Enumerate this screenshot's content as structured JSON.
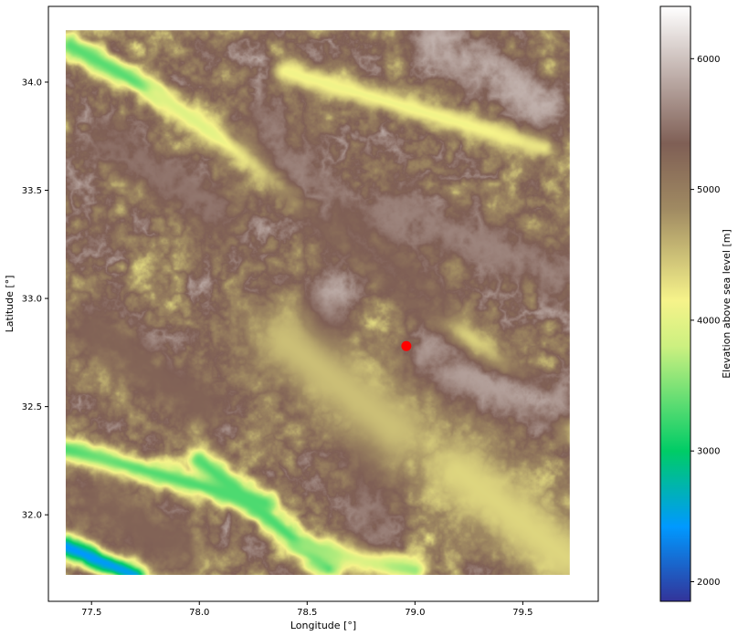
{
  "chart_data": {
    "type": "heatmap",
    "x_axis": {
      "label": "Longitude [°]",
      "range": [
        77.3,
        79.85
      ],
      "ticks": [
        77.5,
        78.0,
        78.5,
        79.0,
        79.5
      ],
      "tick_labels": [
        "77.5",
        "78.0",
        "78.5",
        "79.0",
        "79.5"
      ]
    },
    "y_axis": {
      "label": "Latitude [°]",
      "range": [
        31.6,
        34.35
      ],
      "ticks": [
        32.0,
        32.5,
        33.0,
        33.5,
        34.0
      ],
      "tick_labels": [
        "32.0",
        "32.5",
        "33.0",
        "33.5",
        "34.0"
      ]
    },
    "data_extent": {
      "lon": [
        77.38,
        79.72
      ],
      "lat": [
        31.72,
        34.24
      ]
    },
    "grid": false,
    "colormap": "terrain",
    "colorbar": {
      "label": "Elevation above sea level [m]",
      "range": [
        1850,
        6400
      ],
      "ticks": [
        2000,
        3000,
        4000,
        5000,
        6000
      ],
      "tick_labels": [
        "2000",
        "3000",
        "4000",
        "5000",
        "6000"
      ],
      "stops": [
        {
          "value": 1850,
          "color": "#333399"
        },
        {
          "value": 2420,
          "color": "#0099ff"
        },
        {
          "value": 3000,
          "color": "#00cc66"
        },
        {
          "value": 3800,
          "color": "#ccf080"
        },
        {
          "value": 4150,
          "color": "#f6f38a"
        },
        {
          "value": 4850,
          "color": "#a08a62"
        },
        {
          "value": 5350,
          "color": "#7f5f55"
        },
        {
          "value": 6400,
          "color": "#ffffff"
        }
      ]
    },
    "point_marker": {
      "lon": 78.96,
      "lat": 32.78,
      "color": "#ff0000"
    },
    "terrain_features": [
      {
        "kind": "valley",
        "from": [
          77.4,
          34.17
        ],
        "to": [
          77.8,
          33.95
        ],
        "elev": 3350
      },
      {
        "kind": "valley",
        "from": [
          77.8,
          33.95
        ],
        "to": [
          78.6,
          33.38
        ],
        "elev": 3950
      },
      {
        "kind": "valley",
        "from": [
          78.6,
          33.38
        ],
        "to": [
          79.75,
          32.38
        ],
        "elev": 4100
      },
      {
        "kind": "valley",
        "from": [
          78.4,
          34.05
        ],
        "to": [
          79.6,
          33.7
        ],
        "elev": 4100
      },
      {
        "kind": "valley",
        "from": [
          77.38,
          32.3
        ],
        "to": [
          78.3,
          32.05
        ],
        "elev": 3300
      },
      {
        "kind": "valley",
        "from": [
          78.0,
          32.25
        ],
        "to": [
          78.6,
          31.75
        ],
        "elev": 3300
      },
      {
        "kind": "valley",
        "from": [
          77.38,
          31.85
        ],
        "to": [
          77.7,
          31.72
        ],
        "elev": 2300
      },
      {
        "kind": "valley",
        "from": [
          78.5,
          31.85
        ],
        "to": [
          79.0,
          31.74
        ],
        "elev": 3600
      },
      {
        "kind": "ridge",
        "from": [
          77.6,
          33.7
        ],
        "to": [
          78.1,
          33.4
        ],
        "elev": 5500
      },
      {
        "kind": "ridge",
        "from": [
          78.3,
          33.8
        ],
        "to": [
          78.6,
          33.4
        ],
        "elev": 5600
      },
      {
        "kind": "ridge",
        "from": [
          78.7,
          33.3
        ],
        "to": [
          79.1,
          32.95
        ],
        "elev": 5400
      },
      {
        "kind": "ridge",
        "from": [
          78.9,
          33.4
        ],
        "to": [
          79.7,
          33.1
        ],
        "elev": 5600
      },
      {
        "kind": "ridge",
        "from": [
          79.1,
          34.2
        ],
        "to": [
          79.6,
          33.9
        ],
        "elev": 5900
      },
      {
        "kind": "ridge",
        "from": [
          78.6,
          33.0
        ],
        "to": [
          78.55,
          32.75
        ],
        "elev": 6000
      },
      {
        "kind": "ridge",
        "from": [
          79.05,
          32.7
        ],
        "to": [
          79.65,
          32.5
        ],
        "elev": 5800
      },
      {
        "kind": "ridge",
        "from": [
          78.8,
          32.4
        ],
        "to": [
          78.8,
          31.95
        ],
        "elev": 5600
      },
      {
        "kind": "ridge",
        "from": [
          77.5,
          32.85
        ],
        "to": [
          78.0,
          32.5
        ],
        "elev": 5300
      },
      {
        "kind": "ridge",
        "from": [
          77.5,
          32.05
        ],
        "to": [
          77.9,
          31.85
        ],
        "elev": 5300
      },
      {
        "kind": "plateau",
        "from": [
          78.4,
          32.8
        ],
        "to": [
          78.9,
          32.4
        ],
        "elev": 4500
      },
      {
        "kind": "plateau",
        "from": [
          79.2,
          32.2
        ],
        "to": [
          79.7,
          31.8
        ],
        "elev": 4350
      }
    ]
  }
}
